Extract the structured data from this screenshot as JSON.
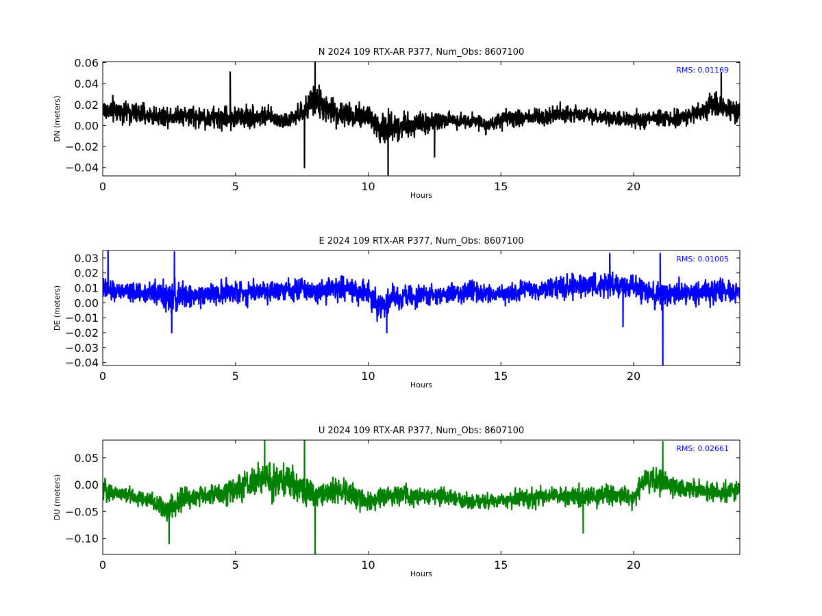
{
  "chart_data": [
    {
      "type": "line",
      "title": "N 2024 109 RTX-AR  P377, Num_Obs: 8607100",
      "xlabel": "Hours",
      "ylabel": "DN (meters)",
      "xlim": [
        0,
        24
      ],
      "ylim": [
        -0.048,
        0.061
      ],
      "xticks": [
        0,
        5,
        10,
        15,
        20
      ],
      "xtick_labels": [
        "0",
        "5",
        "10",
        "15",
        "20"
      ],
      "yticks": [
        -0.04,
        -0.02,
        0.0,
        0.02,
        0.04,
        0.06
      ],
      "ytick_labels": [
        "−0.04",
        "−0.02",
        "0.00",
        "0.02",
        "0.04",
        "0.06"
      ],
      "annotation": "RMS:  0.01169",
      "annotation_color": "#0000ff",
      "grid": false,
      "series": [
        {
          "color": "#000000",
          "x": [
            0,
            1,
            2,
            3,
            4,
            5,
            6,
            7,
            7.5,
            8,
            8.5,
            9,
            10,
            10.5,
            11,
            12,
            13,
            14,
            14.5,
            15,
            16,
            17,
            18,
            19,
            20,
            21,
            22,
            23,
            24
          ],
          "center": [
            0.015,
            0.013,
            0.009,
            0.01,
            0.007,
            0.008,
            0.009,
            0.004,
            0.012,
            0.025,
            0.015,
            0.01,
            0.01,
            -0.005,
            0.0,
            0.002,
            0.005,
            0.005,
            0.0,
            0.005,
            0.008,
            0.01,
            0.012,
            0.006,
            0.005,
            0.006,
            0.008,
            0.02,
            0.012
          ],
          "spread": [
            0.02,
            0.017,
            0.015,
            0.016,
            0.017,
            0.019,
            0.016,
            0.012,
            0.017,
            0.026,
            0.021,
            0.02,
            0.022,
            0.028,
            0.023,
            0.018,
            0.013,
            0.011,
            0.012,
            0.012,
            0.015,
            0.016,
            0.012,
            0.011,
            0.013,
            0.014,
            0.012,
            0.02,
            0.016
          ],
          "spike_min": [
            {
              "x": 7.6,
              "y": -0.04
            },
            {
              "x": 10.75,
              "y": -0.047
            },
            {
              "x": 12.5,
              "y": -0.03
            }
          ],
          "spike_max": [
            {
              "x": 4.8,
              "y": 0.051
            },
            {
              "x": 8.0,
              "y": 0.061
            },
            {
              "x": 23.3,
              "y": 0.05
            }
          ]
        }
      ]
    },
    {
      "type": "line",
      "title": "E 2024 109 RTX-AR  P377, Num_Obs: 8607100",
      "xlabel": "Hours",
      "ylabel": "DE (meters)",
      "xlim": [
        0,
        24
      ],
      "ylim": [
        -0.042,
        0.035
      ],
      "xticks": [
        0,
        5,
        10,
        15,
        20
      ],
      "xtick_labels": [
        "0",
        "5",
        "10",
        "15",
        "20"
      ],
      "yticks": [
        -0.04,
        -0.03,
        -0.02,
        -0.01,
        0.0,
        0.01,
        0.02,
        0.03
      ],
      "ytick_labels": [
        "−0.04",
        "−0.03",
        "−0.02",
        "−0.01",
        "0.00",
        "0.01",
        "0.02",
        "0.03"
      ],
      "annotation": "RMS:  0.01005",
      "annotation_color": "#0000ff",
      "grid": false,
      "series": [
        {
          "color": "#0000ff",
          "x": [
            0,
            1,
            2,
            2.5,
            3,
            4,
            5,
            6,
            7,
            8,
            9,
            10,
            10.5,
            11,
            12,
            13,
            14,
            15,
            16,
            17,
            18,
            19,
            20,
            21,
            22,
            23,
            24
          ],
          "center": [
            0.008,
            0.007,
            0.007,
            0.002,
            0.005,
            0.006,
            0.007,
            0.008,
            0.01,
            0.008,
            0.01,
            0.006,
            -0.002,
            0.003,
            0.004,
            0.006,
            0.007,
            0.005,
            0.008,
            0.01,
            0.011,
            0.012,
            0.01,
            0.005,
            0.007,
            0.008,
            0.007
          ],
          "spread": [
            0.012,
            0.01,
            0.012,
            0.018,
            0.014,
            0.012,
            0.013,
            0.012,
            0.013,
            0.012,
            0.014,
            0.013,
            0.016,
            0.013,
            0.011,
            0.011,
            0.012,
            0.011,
            0.012,
            0.012,
            0.012,
            0.014,
            0.012,
            0.015,
            0.012,
            0.013,
            0.013
          ],
          "spike_min": [
            {
              "x": 2.6,
              "y": -0.02
            },
            {
              "x": 10.7,
              "y": -0.02
            },
            {
              "x": 19.6,
              "y": -0.016
            },
            {
              "x": 21.1,
              "y": -0.042
            }
          ],
          "spike_max": [
            {
              "x": 0.2,
              "y": 0.035
            },
            {
              "x": 2.7,
              "y": 0.034
            },
            {
              "x": 19.1,
              "y": 0.033
            },
            {
              "x": 21.0,
              "y": 0.033
            }
          ]
        }
      ]
    },
    {
      "type": "line",
      "title": "U 2024 109 RTX-AR  P377, Num_Obs: 8607100",
      "xlabel": "Hours",
      "ylabel": "DU (meters)",
      "xlim": [
        0,
        24
      ],
      "ylim": [
        -0.13,
        0.083
      ],
      "xticks": [
        0,
        5,
        10,
        15,
        20
      ],
      "xtick_labels": [
        "0",
        "5",
        "10",
        "15",
        "20"
      ],
      "yticks": [
        -0.1,
        -0.05,
        0.0,
        0.05
      ],
      "ytick_labels": [
        "−0.10",
        "−0.05",
        "0.00",
        "0.05"
      ],
      "annotation": "RMS:  0.02661",
      "annotation_color": "#0000ff",
      "grid": false,
      "series": [
        {
          "color": "#008000",
          "x": [
            0,
            1,
            2,
            2.5,
            3,
            4,
            5,
            6,
            7,
            8,
            9,
            10,
            11,
            12,
            13,
            14,
            15,
            16,
            17,
            18,
            19,
            20,
            20.4,
            21,
            22,
            23,
            24
          ],
          "center": [
            -0.01,
            -0.02,
            -0.035,
            -0.05,
            -0.025,
            -0.02,
            -0.01,
            0.01,
            0.005,
            -0.02,
            -0.01,
            -0.03,
            -0.02,
            -0.02,
            -0.025,
            -0.035,
            -0.03,
            -0.025,
            -0.02,
            -0.025,
            -0.02,
            -0.025,
            0.01,
            0.01,
            -0.01,
            -0.015,
            -0.01
          ],
          "spread": [
            0.03,
            0.025,
            0.03,
            0.045,
            0.035,
            0.03,
            0.04,
            0.05,
            0.045,
            0.05,
            0.035,
            0.035,
            0.03,
            0.025,
            0.025,
            0.022,
            0.025,
            0.03,
            0.03,
            0.035,
            0.03,
            0.03,
            0.035,
            0.04,
            0.03,
            0.03,
            0.03
          ],
          "spike_min": [
            {
              "x": 2.5,
              "y": -0.11
            },
            {
              "x": 8.0,
              "y": -0.13
            },
            {
              "x": 18.1,
              "y": -0.09
            }
          ],
          "spike_max": [
            {
              "x": 6.1,
              "y": 0.083
            },
            {
              "x": 7.6,
              "y": 0.083
            },
            {
              "x": 21.1,
              "y": 0.08
            }
          ]
        }
      ]
    }
  ]
}
